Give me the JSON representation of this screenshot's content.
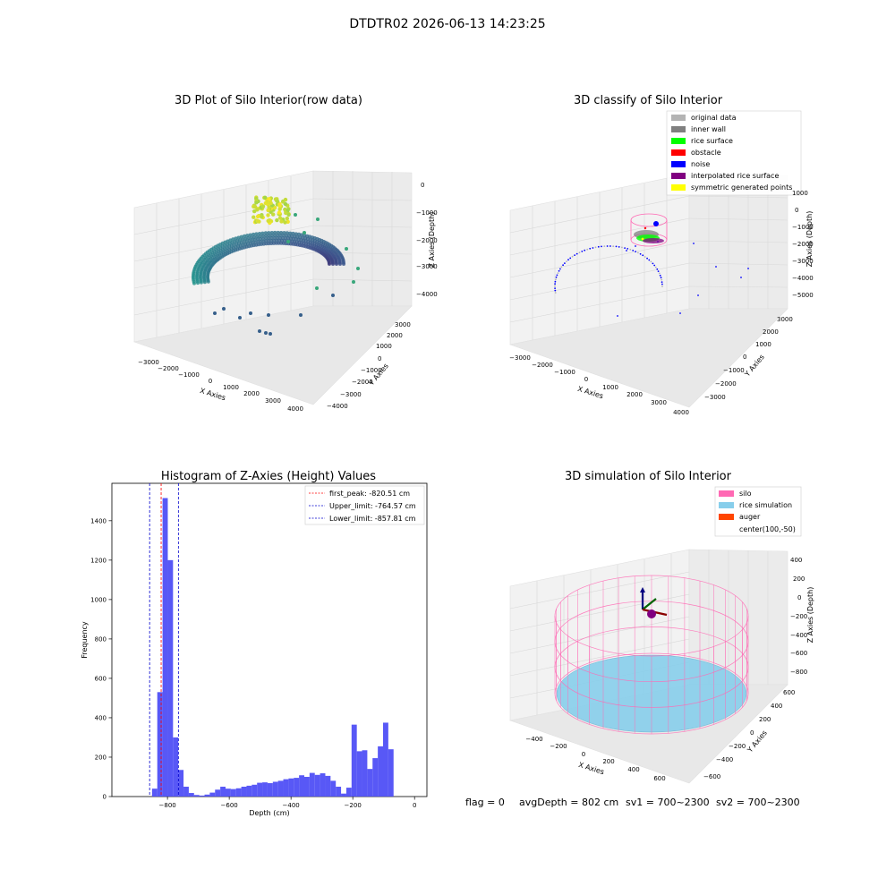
{
  "suptitle": "DTDTR02 2026-06-13 14:23:25",
  "footer": {
    "flag": "flag = 0",
    "avg": "avgDepth = 802 cm",
    "sv1": "sv1 = 700~2300",
    "sv2": "sv2 = 700~2300"
  },
  "colors": {
    "grid": "#d9d9d9",
    "pane": "#f2f2f2",
    "hist_bar": "#4f4ff6",
    "first_peak": "#ff0000",
    "limit": "#0000cc",
    "silo": "#ff69b4",
    "rice": "#87ceeb",
    "auger": "#ff4500"
  },
  "chart_data": [
    {
      "type": "scatter3d",
      "title": "3D Plot of Silo Interior(row data)",
      "xlabel": "X Axies",
      "ylabel": "Y Axies",
      "zlabel": "Z Axies (Depth)",
      "xticks": [
        "−3000",
        "−2000",
        "−1000",
        "0",
        "1000",
        "2000",
        "3000",
        "4000"
      ],
      "yticks": [
        "−4000",
        "−3000",
        "−2000",
        "−1000",
        "0",
        "1000",
        "2000",
        "3000"
      ],
      "zticks": [
        "0",
        "−1000",
        "−2000",
        "−3000",
        "−4000"
      ],
      "xlim": [
        -3300,
        4200
      ],
      "ylim": [
        -4200,
        3500
      ],
      "zlim": [
        -4500,
        200
      ],
      "colormap": "viridis (color by depth)",
      "grid": true
    },
    {
      "type": "scatter3d",
      "title": "3D classify of Silo Interior",
      "xlabel": "X Axies",
      "ylabel": "Y Axies",
      "zlabel": "Z Axies (Depth)",
      "xticks": [
        "−3000",
        "−2000",
        "−1000",
        "0",
        "1000",
        "2000",
        "3000",
        "4000"
      ],
      "yticks": [
        "−3000",
        "−2000",
        "−1000",
        "0",
        "1000",
        "2000",
        "3000"
      ],
      "zticks": [
        "1000",
        "0",
        "−1000",
        "−2000",
        "−3000",
        "−4000",
        "−5000"
      ],
      "xlim": [
        -3300,
        4200
      ],
      "ylim": [
        -3500,
        3500
      ],
      "zlim": [
        -5500,
        1200
      ],
      "legend": [
        {
          "label": "original data",
          "color": "#b3b3b3"
        },
        {
          "label": "inner wall",
          "color": "#808080"
        },
        {
          "label": "rice surface",
          "color": "#00ff00"
        },
        {
          "label": "obstacle",
          "color": "#ff0000"
        },
        {
          "label": "noise",
          "color": "#0000ff"
        },
        {
          "label": "interpolated rice surface",
          "color": "#800080"
        },
        {
          "label": "symmetric generated points",
          "color": "#ffff00"
        }
      ],
      "legend_loc": "upper right",
      "grid": true
    },
    {
      "type": "bar",
      "title": "Histogram of Z-Axies (Height) Values",
      "xlabel": "Depth (cm)",
      "ylabel": "Frequency",
      "xlim": [
        -980,
        40
      ],
      "ylim": [
        0,
        1590
      ],
      "xticks": [
        -800,
        -600,
        -400,
        -200,
        0
      ],
      "xtick_labels": [
        "−800",
        "−600",
        "−400",
        "−200",
        "0"
      ],
      "yticks": [
        0,
        200,
        400,
        600,
        800,
        1000,
        1200,
        1400
      ],
      "bin_start": -850,
      "bin_width": 17,
      "values": [
        40,
        530,
        1515,
        1200,
        300,
        135,
        50,
        18,
        8,
        5,
        10,
        20,
        35,
        50,
        40,
        38,
        42,
        50,
        55,
        60,
        70,
        72,
        68,
        75,
        80,
        88,
        92,
        95,
        108,
        100,
        120,
        110,
        118,
        105,
        80,
        50,
        15,
        45,
        365,
        230,
        235,
        140,
        195,
        255,
        375,
        240
      ],
      "vlines": [
        {
          "label": "first_peak: -820.51 cm",
          "x": -820.51,
          "color": "#ff0000"
        },
        {
          "label": "Upper_limit: -764.57 cm",
          "x": -764.57,
          "color": "#0000cc"
        },
        {
          "label": "Lower_limit: -857.81 cm",
          "x": -857.81,
          "color": "#0000cc"
        }
      ],
      "legend_loc": "upper right",
      "grid": false
    },
    {
      "type": "surface3d",
      "title": "3D simulation of Silo Interior",
      "xlabel": "X Axies",
      "ylabel": "Y Axies",
      "zlabel": "Z Axies (Depth)",
      "xticks": [
        "−400",
        "−200",
        "0",
        "200",
        "400",
        "600"
      ],
      "yticks": [
        "−600",
        "−400",
        "−200",
        "0",
        "200",
        "400",
        "600"
      ],
      "zticks": [
        "400",
        "200",
        "0",
        "−200",
        "−400",
        "−600",
        "−800"
      ],
      "legend": [
        {
          "label": "silo",
          "color": "#ff69b4"
        },
        {
          "label": "rice simulation",
          "color": "#87ceeb"
        },
        {
          "label": "auger",
          "color": "#ff4500"
        },
        {
          "label": "center(100,-50)",
          "color": ""
        }
      ],
      "legend_loc": "upper right",
      "grid": true
    }
  ]
}
